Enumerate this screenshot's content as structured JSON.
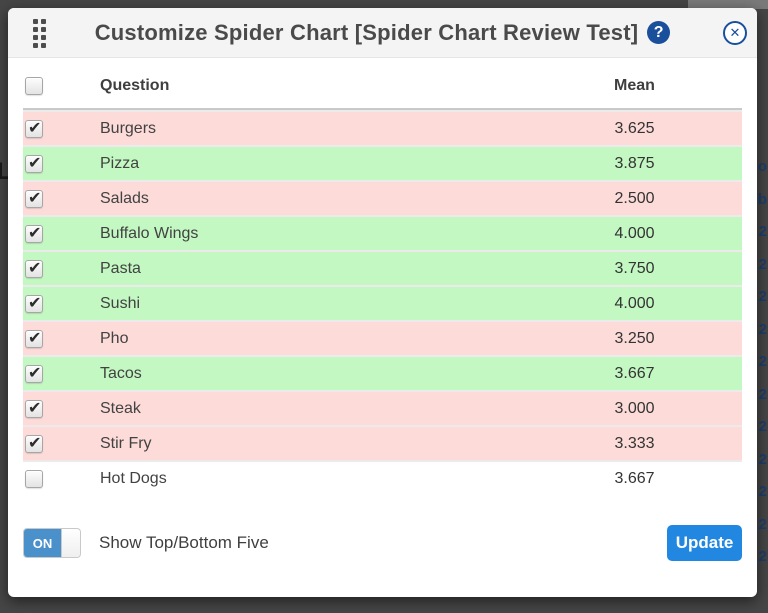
{
  "header": {
    "title": "Customize Spider Chart [Spider Chart Review Test]",
    "help_icon": "?",
    "close_icon": "✕"
  },
  "table": {
    "columns": {
      "question": "Question",
      "mean": "Mean"
    },
    "select_all_checked": false,
    "rows": [
      {
        "question": "Burgers",
        "mean": "3.625",
        "checked": true,
        "group": "bottom"
      },
      {
        "question": "Pizza",
        "mean": "3.875",
        "checked": true,
        "group": "top"
      },
      {
        "question": "Salads",
        "mean": "2.500",
        "checked": true,
        "group": "bottom"
      },
      {
        "question": "Buffalo Wings",
        "mean": "4.000",
        "checked": true,
        "group": "top"
      },
      {
        "question": "Pasta",
        "mean": "3.750",
        "checked": true,
        "group": "top"
      },
      {
        "question": "Sushi",
        "mean": "4.000",
        "checked": true,
        "group": "top"
      },
      {
        "question": "Pho",
        "mean": "3.250",
        "checked": true,
        "group": "bottom"
      },
      {
        "question": "Tacos",
        "mean": "3.667",
        "checked": true,
        "group": "top"
      },
      {
        "question": "Steak",
        "mean": "3.000",
        "checked": true,
        "group": "bottom"
      },
      {
        "question": "Stir Fry",
        "mean": "3.333",
        "checked": true,
        "group": "bottom"
      },
      {
        "question": "Hot Dogs",
        "mean": "3.667",
        "checked": false,
        "group": "none"
      }
    ]
  },
  "footer": {
    "toggle_state": "ON",
    "toggle_label": "Show Top/Bottom Five",
    "update_label": "Update"
  },
  "colors": {
    "top_five_bg": "#c3f8c2",
    "bottom_five_bg": "#fcdbd9",
    "accent_blue": "#2287e1",
    "toggle_blue": "#4a90cb",
    "icon_navy": "#1a4f9c"
  },
  "background_page": {
    "left_edge_fragment": "L",
    "right_edge_fragments": [
      "o",
      "b",
      "2",
      "2",
      "2",
      "2",
      "2",
      "2",
      "2",
      "2",
      "2",
      "2",
      "2"
    ]
  }
}
